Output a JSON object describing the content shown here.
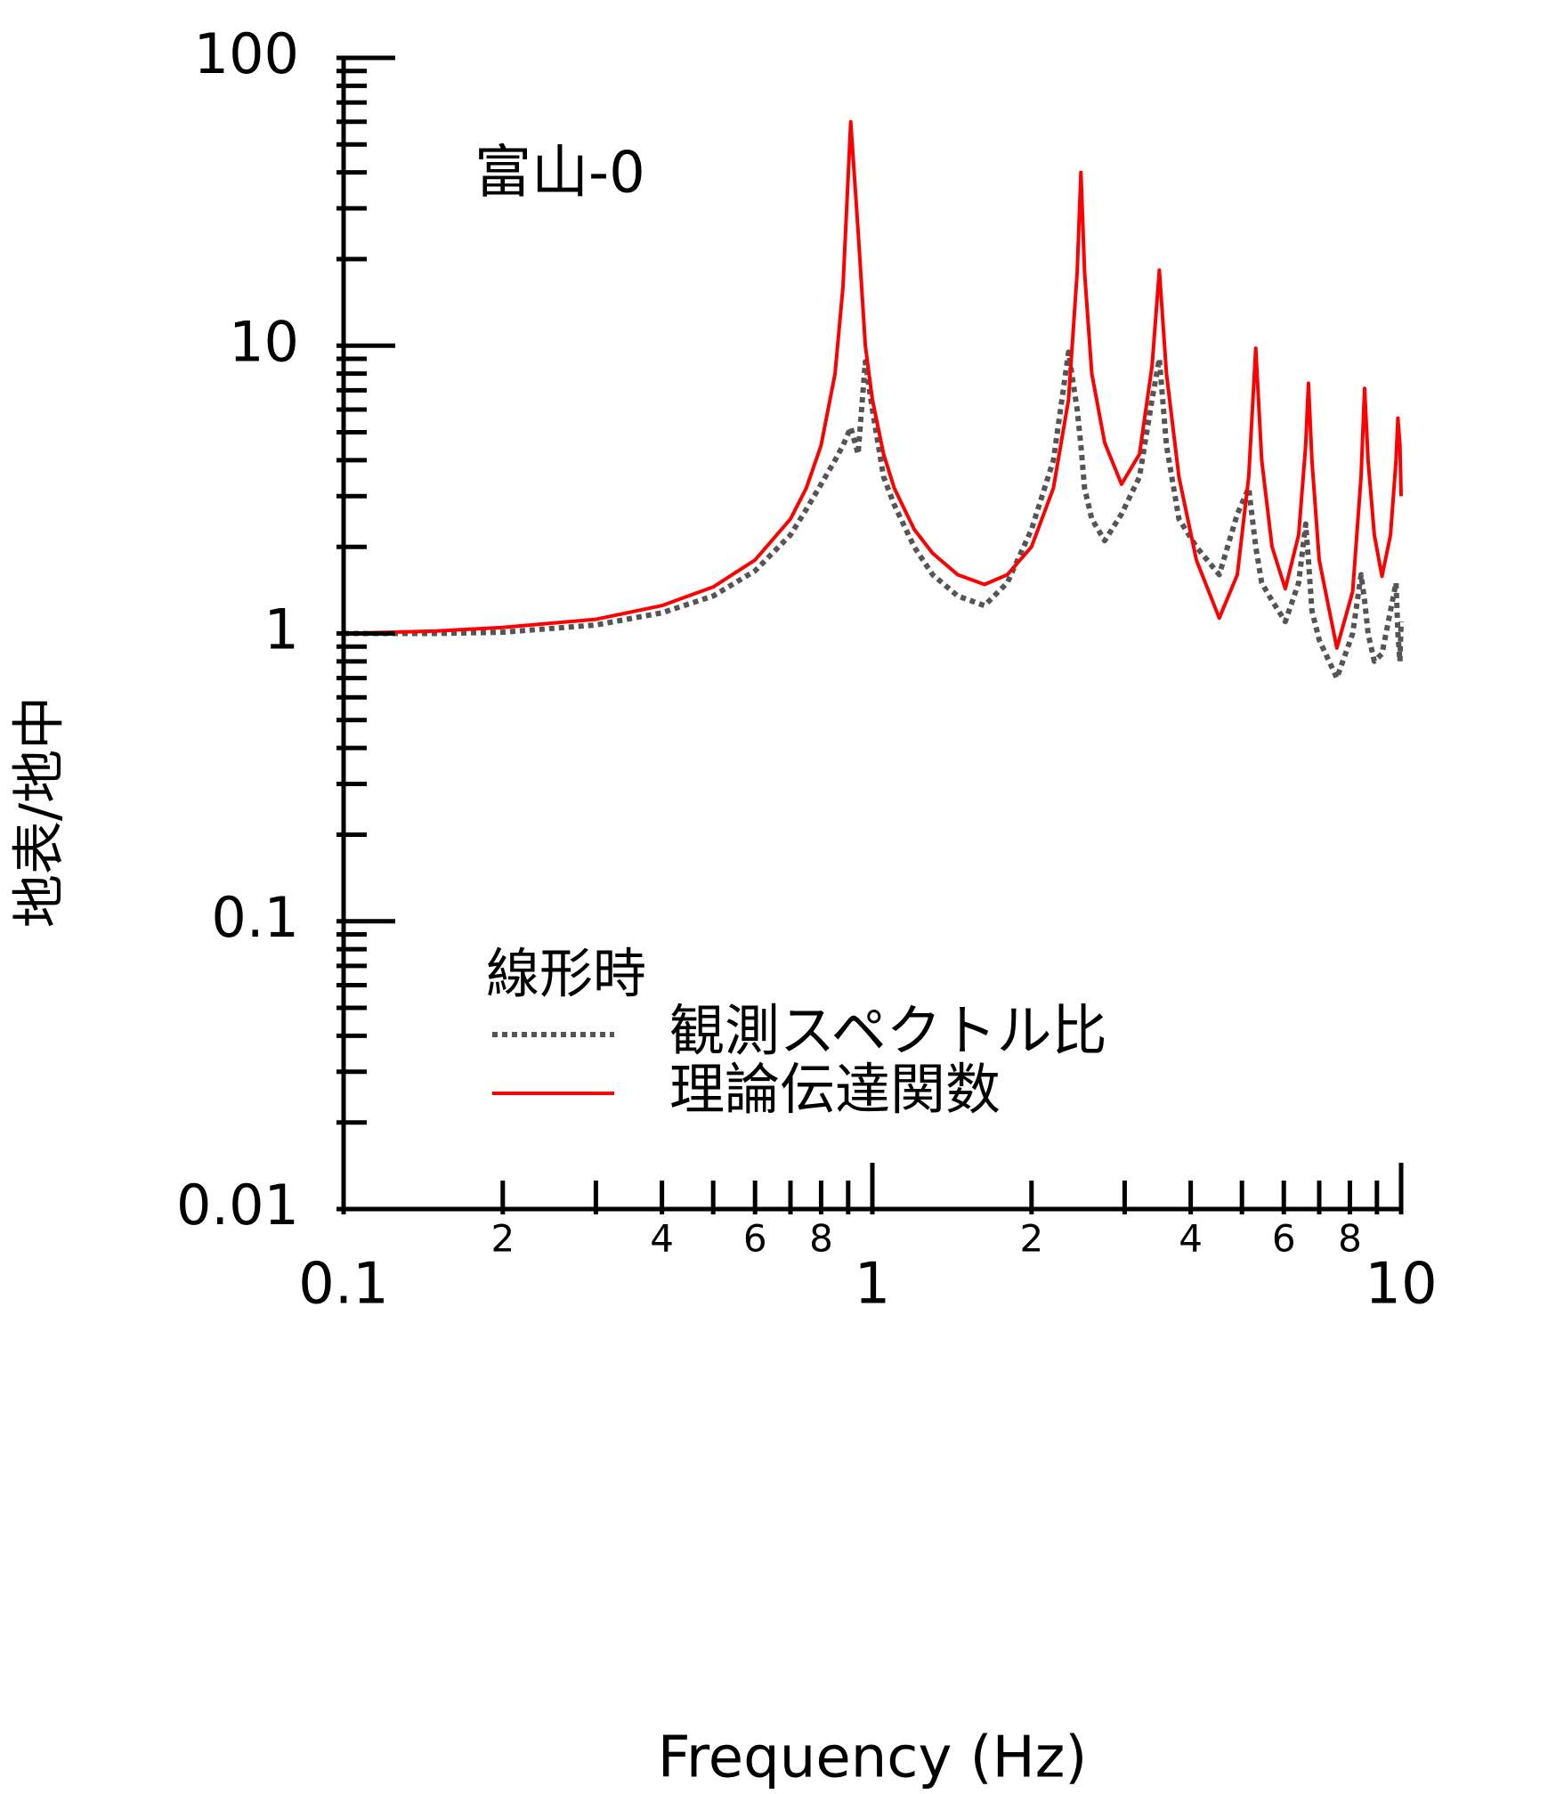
{
  "chart_data": {
    "type": "line",
    "ylabel": "地表/地中",
    "xlabel": "Frequency (Hz)",
    "annotation": "富山-0",
    "legend_title": "線形時",
    "log_x": true,
    "log_y": true,
    "xlim": [
      0.1,
      10
    ],
    "ylim": [
      0.01,
      100
    ],
    "xticks": [
      {
        "value": 0.1,
        "label": "0.1"
      },
      {
        "value": 0.2,
        "label": "2"
      },
      {
        "value": 0.4,
        "label": "4"
      },
      {
        "value": 0.6,
        "label": "6"
      },
      {
        "value": 0.8,
        "label": "8"
      },
      1,
      2,
      4,
      6,
      8,
      10
    ],
    "xminorticks": [
      0.3,
      0.5,
      0.7,
      0.9,
      3,
      5,
      7,
      9
    ],
    "yticks": [
      0.01,
      0.1,
      1,
      10,
      100
    ],
    "yminorticks": [
      0.02,
      0.03,
      0.04,
      0.05,
      0.06,
      0.07,
      0.08,
      0.09,
      0.2,
      0.3,
      0.4,
      0.5,
      0.6,
      0.7,
      0.8,
      0.9,
      2,
      3,
      4,
      5,
      6,
      7,
      8,
      9,
      20,
      30,
      40,
      50,
      60,
      70,
      80,
      90
    ],
    "x": [
      0.1,
      0.15,
      0.2,
      0.3,
      0.4,
      0.5,
      0.6,
      0.7,
      0.75,
      0.8,
      0.85,
      0.88,
      0.91,
      0.94,
      0.97,
      1.0,
      1.05,
      1.1,
      1.2,
      1.3,
      1.45,
      1.63,
      1.8,
      2.0,
      2.2,
      2.35,
      2.44,
      2.48,
      2.52,
      2.6,
      2.75,
      2.96,
      3.2,
      3.38,
      3.49,
      3.6,
      3.8,
      4.1,
      4.53,
      4.9,
      5.15,
      5.31,
      5.45,
      5.7,
      6.04,
      6.4,
      6.6,
      6.68,
      6.78,
      7.0,
      7.56,
      8.1,
      8.4,
      8.53,
      8.66,
      8.9,
      9.2,
      9.55,
      9.78,
      9.86,
      9.95,
      10.0
    ],
    "series": [
      {
        "name": "観測スペクトル比",
        "color": "#555555",
        "dashed": true,
        "values": [
          1.0,
          1.0,
          1.01,
          1.07,
          1.18,
          1.35,
          1.65,
          2.2,
          2.7,
          3.3,
          4.0,
          4.5,
          5.2,
          4.2,
          8.8,
          6.0,
          3.5,
          2.8,
          2.0,
          1.6,
          1.35,
          1.25,
          1.5,
          2.3,
          4.0,
          9.5,
          6,
          4.5,
          3.2,
          2.5,
          2.1,
          2.6,
          3.5,
          6.5,
          9,
          4.5,
          2.5,
          2.0,
          1.6,
          2.6,
          3.2,
          2.0,
          1.5,
          1.3,
          1.1,
          1.5,
          2.4,
          1.8,
          1.2,
          0.95,
          0.7,
          1.0,
          1.6,
          1.3,
          1.0,
          0.8,
          0.85,
          1.2,
          1.5,
          1.0,
          0.8,
          1.1
        ]
      },
      {
        "name": "理論伝達関数",
        "color": "#ff0000",
        "dashed": false,
        "values": [
          1.0,
          1.02,
          1.05,
          1.12,
          1.25,
          1.45,
          1.8,
          2.5,
          3.2,
          4.5,
          8,
          16,
          60,
          25,
          10,
          6.5,
          4.2,
          3.2,
          2.3,
          1.9,
          1.6,
          1.48,
          1.6,
          2.0,
          3.2,
          6.5,
          18,
          40,
          18,
          8,
          4.6,
          3.3,
          4.2,
          8.5,
          18.3,
          8,
          3.5,
          1.8,
          1.13,
          1.6,
          3.5,
          9.8,
          4,
          2,
          1.43,
          2.2,
          4.5,
          7.4,
          4,
          1.8,
          0.89,
          1.4,
          3.5,
          7.1,
          4,
          2.2,
          1.58,
          2.2,
          4,
          5.6,
          4.5,
          3.0
        ]
      }
    ]
  }
}
